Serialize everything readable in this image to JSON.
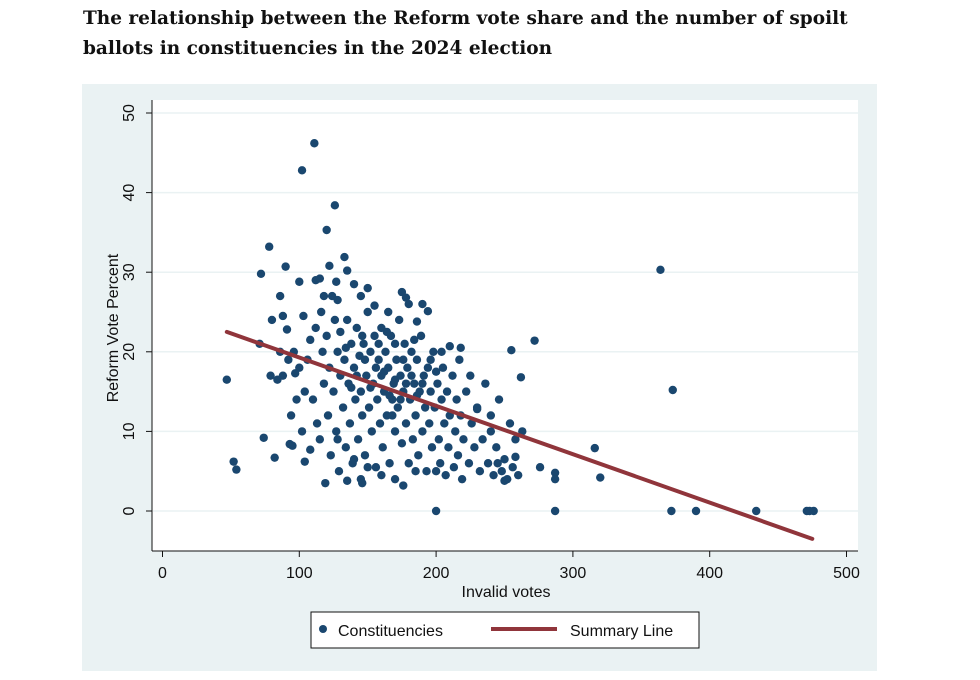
{
  "chart_data": {
    "type": "scatter",
    "title": "The relationship between the Reform vote share and the number of spoilt ballots in constituencies in the 2024 election",
    "xlabel": "Invalid votes",
    "ylabel": "Reform Vote Percent",
    "xlim": [
      0,
      500
    ],
    "ylim": [
      0,
      50
    ],
    "xticks": [
      "0",
      "100",
      "200",
      "300",
      "400",
      "500"
    ],
    "yticks": [
      "0",
      "10",
      "20",
      "30",
      "40",
      "50"
    ],
    "grid": true,
    "legend_position": "bottom",
    "colors": {
      "points": "#1a476f",
      "line": "#90353b",
      "background": "#eaf2f3"
    },
    "series": [
      {
        "name": "Constituencies",
        "type": "scatter",
        "points": [
          [
            47,
            16.5
          ],
          [
            52,
            6.2
          ],
          [
            54,
            5.2
          ],
          [
            72,
            29.8
          ],
          [
            71,
            21
          ],
          [
            74,
            9.2
          ],
          [
            78,
            33.2
          ],
          [
            79,
            17
          ],
          [
            82,
            6.7
          ],
          [
            80,
            24
          ],
          [
            86,
            27
          ],
          [
            90,
            30.7
          ],
          [
            88,
            24.5
          ],
          [
            91,
            22.8
          ],
          [
            93,
            8.4
          ],
          [
            95,
            8.2
          ],
          [
            97,
            17.3
          ],
          [
            100,
            28.8
          ],
          [
            102,
            42.8
          ],
          [
            103,
            24.5
          ],
          [
            104,
            6.2
          ],
          [
            108,
            7.7
          ],
          [
            111,
            46.2
          ],
          [
            112,
            29
          ],
          [
            115,
            29.2
          ],
          [
            120,
            35.3
          ],
          [
            122,
            30.8
          ],
          [
            126,
            38.4
          ],
          [
            127,
            28.8
          ],
          [
            133,
            31.9
          ],
          [
            135,
            30.2
          ],
          [
            145,
            27
          ],
          [
            155,
            25.8
          ],
          [
            175,
            27.5
          ],
          [
            178,
            26.8
          ],
          [
            186,
            23.8
          ],
          [
            190,
            26
          ],
          [
            194,
            25.1
          ],
          [
            200,
            5
          ],
          [
            200,
            0
          ],
          [
            210,
            20.7
          ],
          [
            218,
            20.5
          ],
          [
            225,
            17
          ],
          [
            230,
            12.8
          ],
          [
            240,
            10
          ],
          [
            245,
            6
          ],
          [
            250,
            3.8
          ],
          [
            255,
            20.2
          ],
          [
            258,
            6.8
          ],
          [
            262,
            16.8
          ],
          [
            263,
            10
          ],
          [
            272,
            21.4
          ],
          [
            276,
            5.5
          ],
          [
            287,
            0
          ],
          [
            287,
            4.8
          ],
          [
            287,
            4
          ],
          [
            316,
            7.9
          ],
          [
            320,
            4.2
          ],
          [
            364,
            30.3
          ],
          [
            372,
            0
          ],
          [
            373,
            15.2
          ],
          [
            390,
            0
          ],
          [
            434,
            0
          ],
          [
            471,
            0
          ],
          [
            473,
            0
          ],
          [
            476,
            0
          ],
          [
            106,
            19
          ],
          [
            108,
            21.5
          ],
          [
            110,
            14
          ],
          [
            112,
            23
          ],
          [
            113,
            11
          ],
          [
            115,
            9
          ],
          [
            116,
            25
          ],
          [
            117,
            20
          ],
          [
            118,
            16
          ],
          [
            119,
            3.5
          ],
          [
            120,
            22
          ],
          [
            121,
            12
          ],
          [
            122,
            18
          ],
          [
            123,
            7
          ],
          [
            124,
            27
          ],
          [
            125,
            15
          ],
          [
            126,
            24
          ],
          [
            127,
            10
          ],
          [
            128,
            20
          ],
          [
            129,
            5
          ],
          [
            130,
            17
          ],
          [
            130,
            22.5
          ],
          [
            132,
            13
          ],
          [
            133,
            19
          ],
          [
            134,
            8
          ],
          [
            135,
            24
          ],
          [
            136,
            16
          ],
          [
            137,
            11
          ],
          [
            138,
            21
          ],
          [
            139,
            6
          ],
          [
            140,
            18
          ],
          [
            141,
            14
          ],
          [
            142,
            23
          ],
          [
            143,
            9
          ],
          [
            144,
            19.5
          ],
          [
            145,
            15
          ],
          [
            146,
            12
          ],
          [
            147,
            21
          ],
          [
            148,
            7
          ],
          [
            149,
            17
          ],
          [
            150,
            25
          ],
          [
            151,
            13
          ],
          [
            152,
            20
          ],
          [
            153,
            10
          ],
          [
            154,
            16
          ],
          [
            155,
            22
          ],
          [
            156,
            5.5
          ],
          [
            157,
            14
          ],
          [
            158,
            19
          ],
          [
            159,
            11
          ],
          [
            160,
            17
          ],
          [
            160,
            23
          ],
          [
            161,
            8
          ],
          [
            162,
            15
          ],
          [
            163,
            20
          ],
          [
            164,
            12
          ],
          [
            165,
            18
          ],
          [
            166,
            6
          ],
          [
            167,
            22
          ],
          [
            168,
            14
          ],
          [
            169,
            16
          ],
          [
            170,
            10
          ],
          [
            171,
            19
          ],
          [
            172,
            13
          ],
          [
            173,
            24
          ],
          [
            174,
            17
          ],
          [
            175,
            8.5
          ],
          [
            176,
            15
          ],
          [
            177,
            21
          ],
          [
            178,
            11
          ],
          [
            179,
            18
          ],
          [
            180,
            6
          ],
          [
            181,
            14
          ],
          [
            182,
            20
          ],
          [
            183,
            9
          ],
          [
            184,
            16
          ],
          [
            185,
            12
          ],
          [
            186,
            19
          ],
          [
            187,
            7
          ],
          [
            188,
            15
          ],
          [
            189,
            22
          ],
          [
            190,
            10
          ],
          [
            191,
            17
          ],
          [
            192,
            13
          ],
          [
            193,
            5
          ],
          [
            194,
            18
          ],
          [
            195,
            11
          ],
          [
            196,
            15
          ],
          [
            197,
            8
          ],
          [
            198,
            20
          ],
          [
            199,
            13
          ],
          [
            201,
            16
          ],
          [
            202,
            9
          ],
          [
            203,
            6
          ],
          [
            204,
            14
          ],
          [
            205,
            18
          ],
          [
            206,
            11
          ],
          [
            207,
            4.5
          ],
          [
            208,
            15
          ],
          [
            209,
            8
          ],
          [
            210,
            12
          ],
          [
            212,
            17
          ],
          [
            213,
            5.5
          ],
          [
            214,
            10
          ],
          [
            215,
            14
          ],
          [
            216,
            7
          ],
          [
            217,
            19
          ],
          [
            218,
            12
          ],
          [
            219,
            4
          ],
          [
            220,
            9
          ],
          [
            222,
            15
          ],
          [
            224,
            6
          ],
          [
            226,
            11
          ],
          [
            228,
            8
          ],
          [
            230,
            13
          ],
          [
            232,
            5
          ],
          [
            234,
            9
          ],
          [
            236,
            16
          ],
          [
            238,
            6
          ],
          [
            240,
            12
          ],
          [
            242,
            4.5
          ],
          [
            244,
            8
          ],
          [
            246,
            14
          ],
          [
            248,
            5
          ],
          [
            250,
            6.5
          ],
          [
            252,
            4
          ],
          [
            254,
            11
          ],
          [
            256,
            5.5
          ],
          [
            258,
            9
          ],
          [
            260,
            4.5
          ],
          [
            100,
            18
          ],
          [
            98,
            14
          ],
          [
            96,
            20
          ],
          [
            94,
            12
          ],
          [
            92,
            19
          ],
          [
            88,
            17
          ],
          [
            86,
            20
          ],
          [
            84,
            16.5
          ],
          [
            102,
            10
          ],
          [
            104,
            15
          ],
          [
            145,
            4
          ],
          [
            150,
            5.5
          ],
          [
            170,
            4
          ],
          [
            176,
            3.2
          ],
          [
            185,
            5
          ],
          [
            160,
            4.5
          ],
          [
            140,
            6.5
          ],
          [
            135,
            3.8
          ],
          [
            128,
            9
          ],
          [
            165,
            25
          ],
          [
            180,
            26
          ],
          [
            150,
            28
          ],
          [
            140,
            28.5
          ],
          [
            128,
            26.5
          ],
          [
            118,
            27
          ],
          [
            146,
            3.5
          ],
          [
            142,
            17
          ],
          [
            148,
            19
          ],
          [
            152,
            15.5
          ],
          [
            156,
            18
          ],
          [
            162,
            17.5
          ],
          [
            166,
            14.5
          ],
          [
            170,
            16.5
          ],
          [
            174,
            14
          ],
          [
            178,
            16
          ],
          [
            182,
            17
          ],
          [
            186,
            14.5
          ],
          [
            190,
            16
          ],
          [
            158,
            21
          ],
          [
            164,
            22.5
          ],
          [
            146,
            22
          ],
          [
            138,
            15.5
          ],
          [
            134,
            20.5
          ],
          [
            170,
            21
          ],
          [
            176,
            19
          ],
          [
            196,
            19
          ],
          [
            200,
            17.5
          ],
          [
            204,
            20
          ],
          [
            184,
            21.5
          ],
          [
            168,
            12
          ]
        ]
      },
      {
        "name": "Summary Line",
        "type": "line",
        "points": [
          [
            47,
            22.5
          ],
          [
            475,
            -3.5
          ]
        ]
      }
    ]
  }
}
